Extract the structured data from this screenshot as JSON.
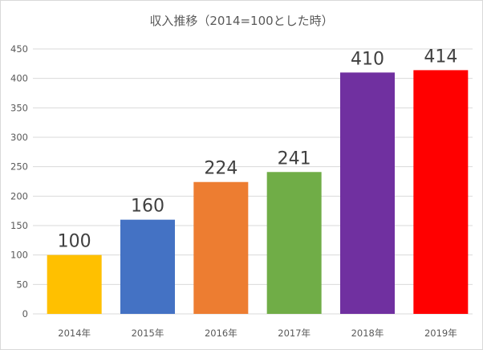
{
  "chart_data": {
    "type": "bar",
    "title": "収入推移（2014=100とした時）",
    "categories": [
      "2014年",
      "2015年",
      "2016年",
      "2017年",
      "2018年",
      "2019年"
    ],
    "values": [
      100,
      160,
      224,
      241,
      410,
      414
    ],
    "colors": [
      "#FFC000",
      "#4472C4",
      "#ED7D31",
      "#70AD47",
      "#7030A0",
      "#FF0000"
    ],
    "ylim": [
      0,
      450
    ],
    "yticks": [
      0,
      50,
      100,
      150,
      200,
      250,
      300,
      350,
      400,
      450
    ],
    "grid": true,
    "xlabel": "",
    "ylabel": ""
  }
}
